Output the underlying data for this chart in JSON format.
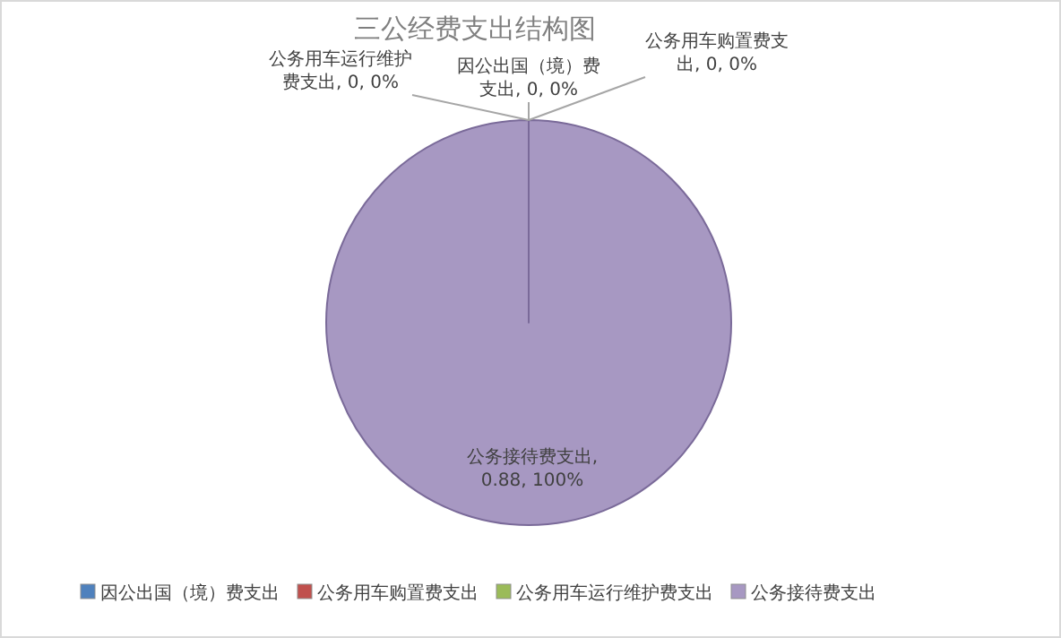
{
  "chart_data": {
    "type": "pie",
    "title": "三公经费支出结构图",
    "categories": [
      "因公出国（境）费支出",
      "公务用车购置费支出",
      "公务用车运行维护费支出",
      "公务接待费支出"
    ],
    "values": [
      0,
      0,
      0,
      0.88
    ],
    "colors": [
      "#4f81bd",
      "#c0504d",
      "#9bbb59",
      "#a798c2"
    ],
    "value_labels": [
      "因公出国（境）费支出, 0, 0%",
      "公务用车购置费支出, 0, 0%",
      "公务用车运行维护费支出, 0, 0%",
      "公务接待费支出, 0.88, 100%"
    ],
    "legend": "bottom"
  }
}
